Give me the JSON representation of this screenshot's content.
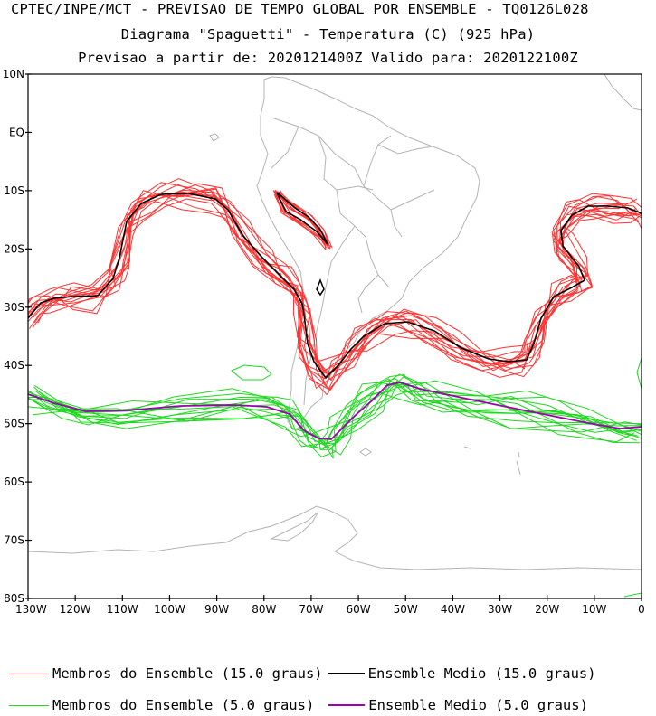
{
  "header": {
    "line1": "CPTEC/INPE/MCT - PREVISAO DE TEMPO GLOBAL POR ENSEMBLE - TQ0126L028",
    "line2": "Diagrama \"Spaguetti\" - Temperatura (C) (925 hPa)",
    "line3": "Previsao a partir de: 2020121400Z  Valido para: 2020122100Z"
  },
  "axes": {
    "lat_labels": [
      "10N",
      "EQ",
      "10S",
      "20S",
      "30S",
      "40S",
      "50S",
      "60S",
      "70S",
      "80S"
    ],
    "lon_labels": [
      "130W",
      "120W",
      "110W",
      "100W",
      "90W",
      "80W",
      "70W",
      "60W",
      "50W",
      "40W",
      "30W",
      "20W",
      "10W",
      "0"
    ],
    "lat_range": [
      -80,
      10
    ],
    "lon_range": [
      -130,
      0
    ]
  },
  "colors": {
    "member_15": "#ff3333",
    "mean_15": "#000000",
    "member_5": "#1fd81f",
    "mean_5": "#a000b4",
    "land": "#b4b4b4"
  },
  "legend": {
    "members_15": "Membros do Ensemble (15.0 graus)",
    "mean_15": "Ensemble Medio (15.0 graus)",
    "members_5": "Membros do Ensemble (5.0 graus)",
    "mean_5": "Ensemble Medio (5.0 graus)"
  }
}
